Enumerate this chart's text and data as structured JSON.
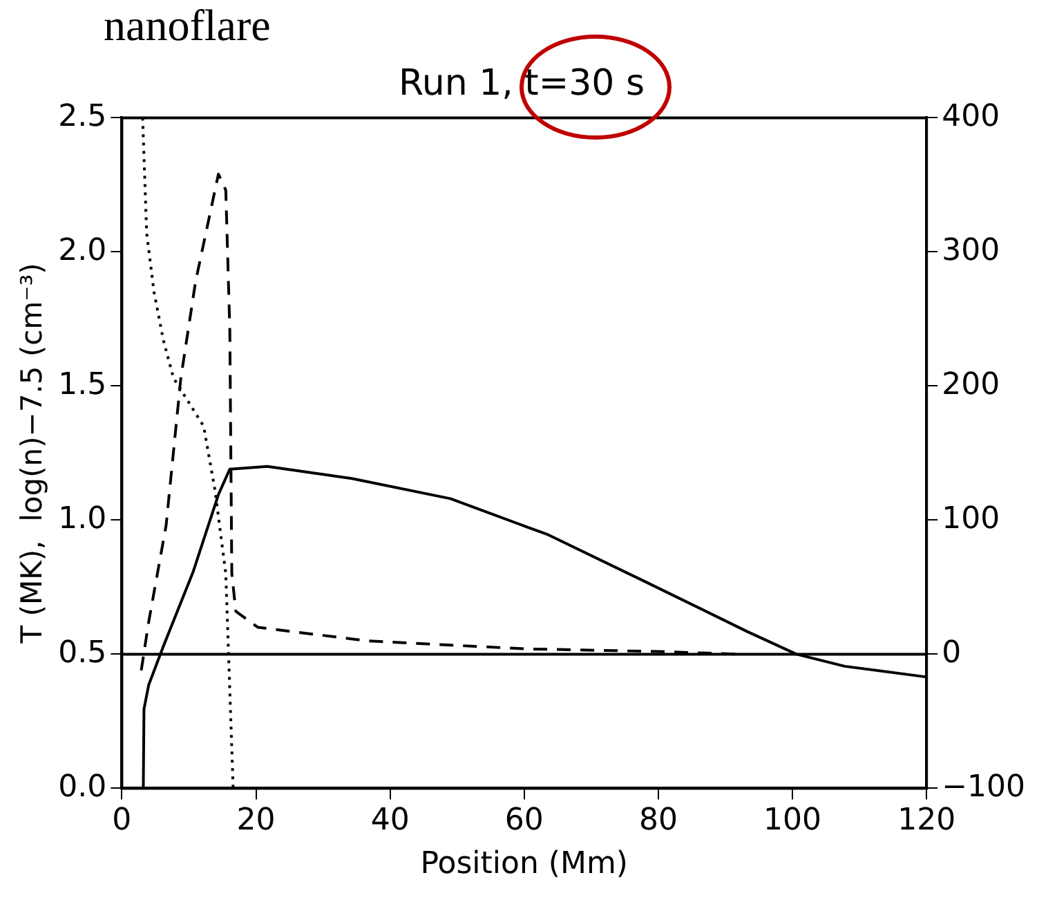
{
  "chart_data": {
    "type": "line",
    "title": "Run 1, t=30 s",
    "xlabel": "Position (Mm)",
    "ylabel": "T (MK),  log(n)−7.5 (cm⁻³)",
    "annotations": [
      "nanoflare"
    ],
    "xlim": [
      0,
      120
    ],
    "xticks": [
      0,
      20,
      40,
      60,
      80,
      100,
      120
    ],
    "ylim": [
      0,
      2.5
    ],
    "yticks": [
      {
        "value": 0,
        "label": "0.0"
      },
      {
        "value": 0.5,
        "label": "0.5"
      },
      {
        "value": 1,
        "label": "1.0"
      },
      {
        "value": 1.5,
        "label": "1.5"
      },
      {
        "value": 2,
        "label": "2.0"
      },
      {
        "value": 2.5,
        "label": "2.5"
      }
    ],
    "y2lim": [
      -100,
      400
    ],
    "y2ticks": [
      {
        "value": -100,
        "label": "−100"
      },
      0,
      100,
      200,
      300,
      400
    ],
    "marker": "none",
    "legend": false,
    "ref_lines": [
      {
        "axis": "y2",
        "value": 0,
        "color": "#000000",
        "line_style": "solid"
      }
    ],
    "series": [
      {
        "color": "#000000",
        "line_style": "solid",
        "axis": "y2",
        "x": [
          0,
          3.2,
          3.3,
          4.0,
          6.2,
          10.6,
          14.4,
          16.1,
          21.7,
          34.3,
          49,
          63.6,
          78.5,
          93.2,
          100.6,
          107.8,
          120
        ],
        "values": [
          -100,
          -100,
          -41,
          -23,
          6,
          61,
          119,
          138,
          140,
          131,
          116,
          89,
          53,
          17,
          0,
          -9,
          -17
        ]
      },
      {
        "color": "#000000",
        "line_style": "dashed",
        "x": [
          2.9,
          4.0,
          6.6,
          8.8,
          11.0,
          14.4,
          15.5,
          16.1,
          16.4,
          17.0,
          20.3,
          36.5,
          60,
          80,
          92
        ],
        "values": [
          0.44,
          0.62,
          0.98,
          1.53,
          1.89,
          2.29,
          2.23,
          1.71,
          0.8,
          0.66,
          0.6,
          0.55,
          0.52,
          0.51,
          0.5
        ]
      },
      {
        "color": "#000000",
        "line_style": "dotted",
        "x": [
          3.1,
          3.7,
          4.8,
          6.2,
          7.7,
          12.2,
          13.9,
          15.5,
          16.6
        ],
        "values": [
          2.5,
          2.07,
          1.85,
          1.67,
          1.53,
          1.35,
          1.11,
          0.8,
          0
        ]
      }
    ]
  }
}
